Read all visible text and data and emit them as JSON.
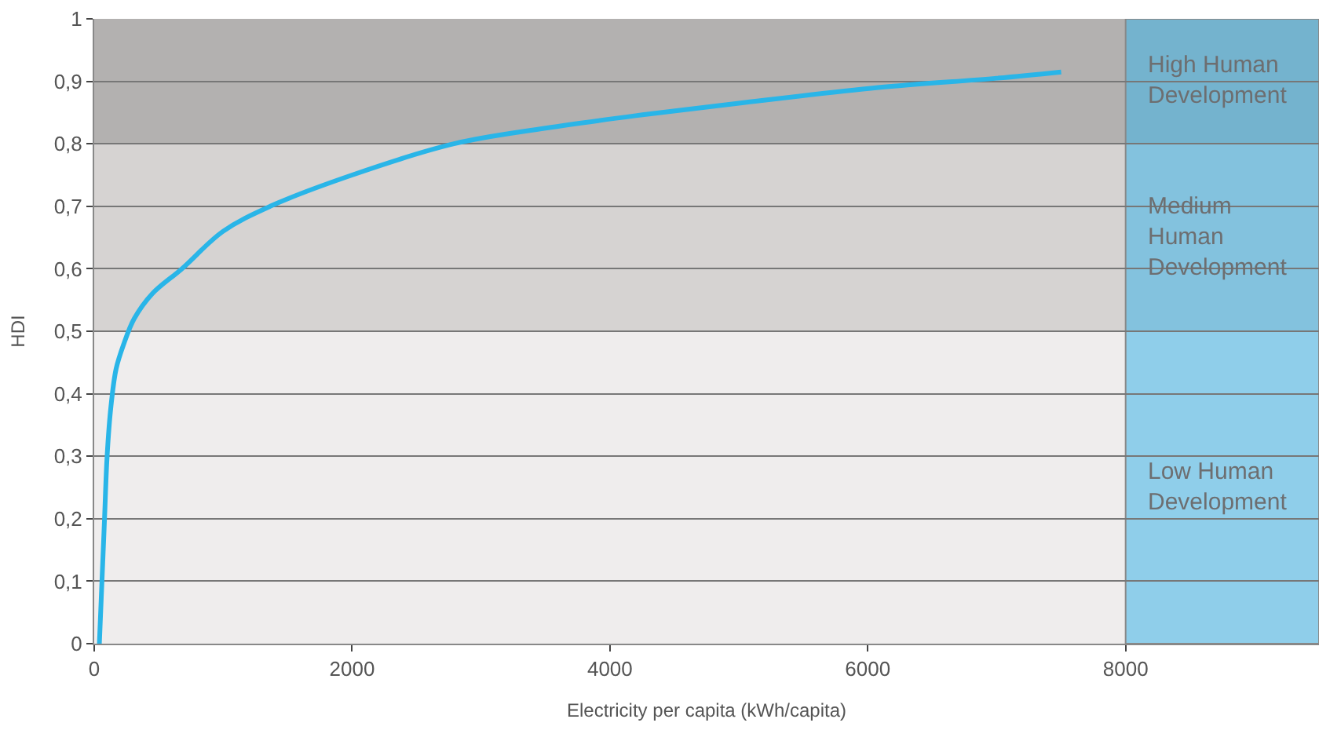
{
  "chart_data": {
    "type": "line",
    "xlabel": "Electricity per capita (kWh/capita)",
    "ylabel": "HDI",
    "x": [
      40,
      60,
      80,
      100,
      130,
      170,
      230,
      310,
      450,
      680,
      1000,
      1365,
      2000,
      2790,
      3500,
      4200,
      5000,
      6080,
      7000,
      7500
    ],
    "series": [
      {
        "color": "#29b5e8",
        "values": [
          0,
          0.1,
          0.2,
          0.3,
          0.38,
          0.44,
          0.48,
          0.52,
          0.56,
          0.6,
          0.66,
          0.7,
          0.75,
          0.8,
          0.825,
          0.845,
          0.865,
          0.89,
          0.905,
          0.915
        ]
      }
    ],
    "xlim": [
      0,
      9500
    ],
    "ylim": [
      0,
      1
    ],
    "xticks": [
      0,
      2000,
      4000,
      6000,
      8000
    ],
    "yticks": [
      0,
      {
        "value": 0.1,
        "label": "0,1"
      },
      {
        "value": 0.2,
        "label": "0,2"
      },
      {
        "value": 0.3,
        "label": "0,3"
      },
      {
        "value": 0.4,
        "label": "0,4"
      },
      {
        "value": 0.5,
        "label": "0,5"
      },
      {
        "value": 0.6,
        "label": "0,6"
      },
      {
        "value": 0.7,
        "label": "0,7"
      },
      {
        "value": 0.8,
        "label": "0,8"
      },
      {
        "value": 0.9,
        "label": "0,9"
      },
      1
    ],
    "bands": [
      {
        "axis": "y",
        "from": 0.8,
        "to": 1,
        "label": "High Human\nDevelopment",
        "color": "#b3b1b0"
      },
      {
        "axis": "y",
        "from": 0.5,
        "to": 0.8,
        "label": "Medium\nHuman\nDevelopment",
        "color": "#d6d3d2"
      },
      {
        "axis": "y",
        "from": 0,
        "to": 0.5,
        "label": "Low Human\nDevelopment",
        "color": "#efeded"
      },
      {
        "axis": "x",
        "from": 8000,
        "to": 9500,
        "color": "#3fb4e8"
      }
    ],
    "grid": "y",
    "legend": false,
    "marker": "none",
    "line_style": "solid"
  }
}
